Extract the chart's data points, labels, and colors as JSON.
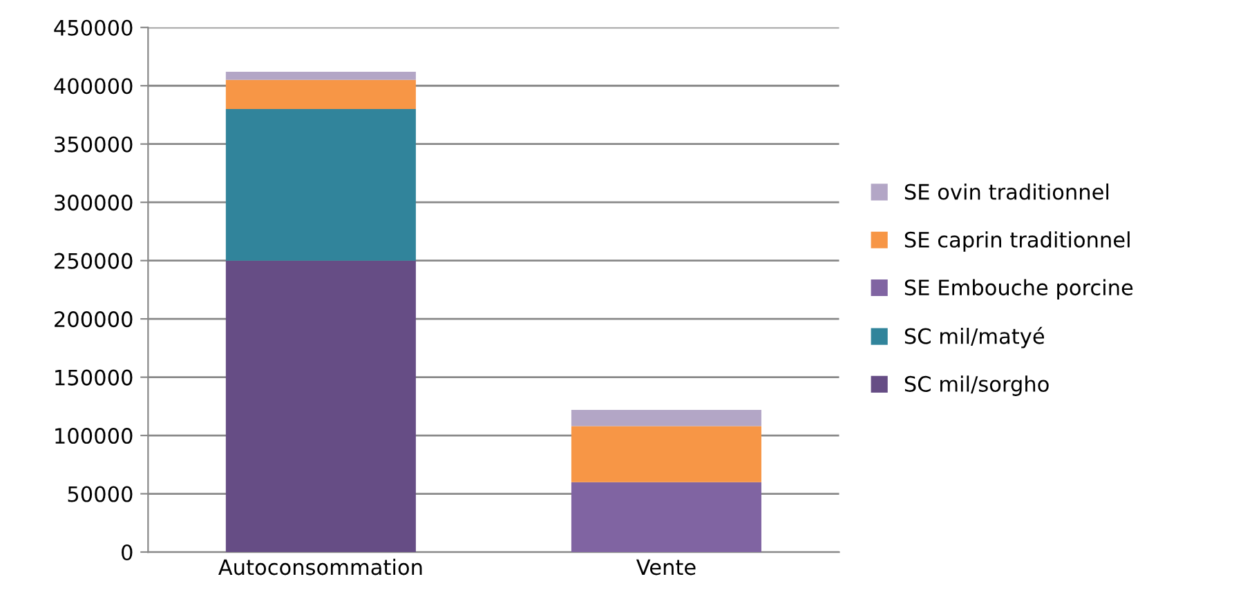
{
  "chart_data": {
    "type": "bar",
    "stacked": true,
    "categories": [
      "Autoconsommation",
      "Vente"
    ],
    "series": [
      {
        "name": "SC mil/sorgho",
        "color": "#664d85",
        "values": [
          250000,
          0
        ]
      },
      {
        "name": "SC mil/matyé",
        "color": "#31849b",
        "values": [
          130000,
          0
        ]
      },
      {
        "name": "SE Embouche porcine",
        "color": "#8064a2",
        "values": [
          0,
          60000
        ]
      },
      {
        "name": "SE caprin traditionnel",
        "color": "#f79646",
        "values": [
          25000,
          48000
        ]
      },
      {
        "name": "SE ovin traditionnel",
        "color": "#b3a6c6",
        "values": [
          7000,
          14000
        ]
      }
    ],
    "ylim": [
      0,
      450000
    ],
    "yticks": [
      0,
      50000,
      100000,
      150000,
      200000,
      250000,
      300000,
      350000,
      400000,
      450000
    ],
    "grid": "y",
    "legend": "right"
  }
}
